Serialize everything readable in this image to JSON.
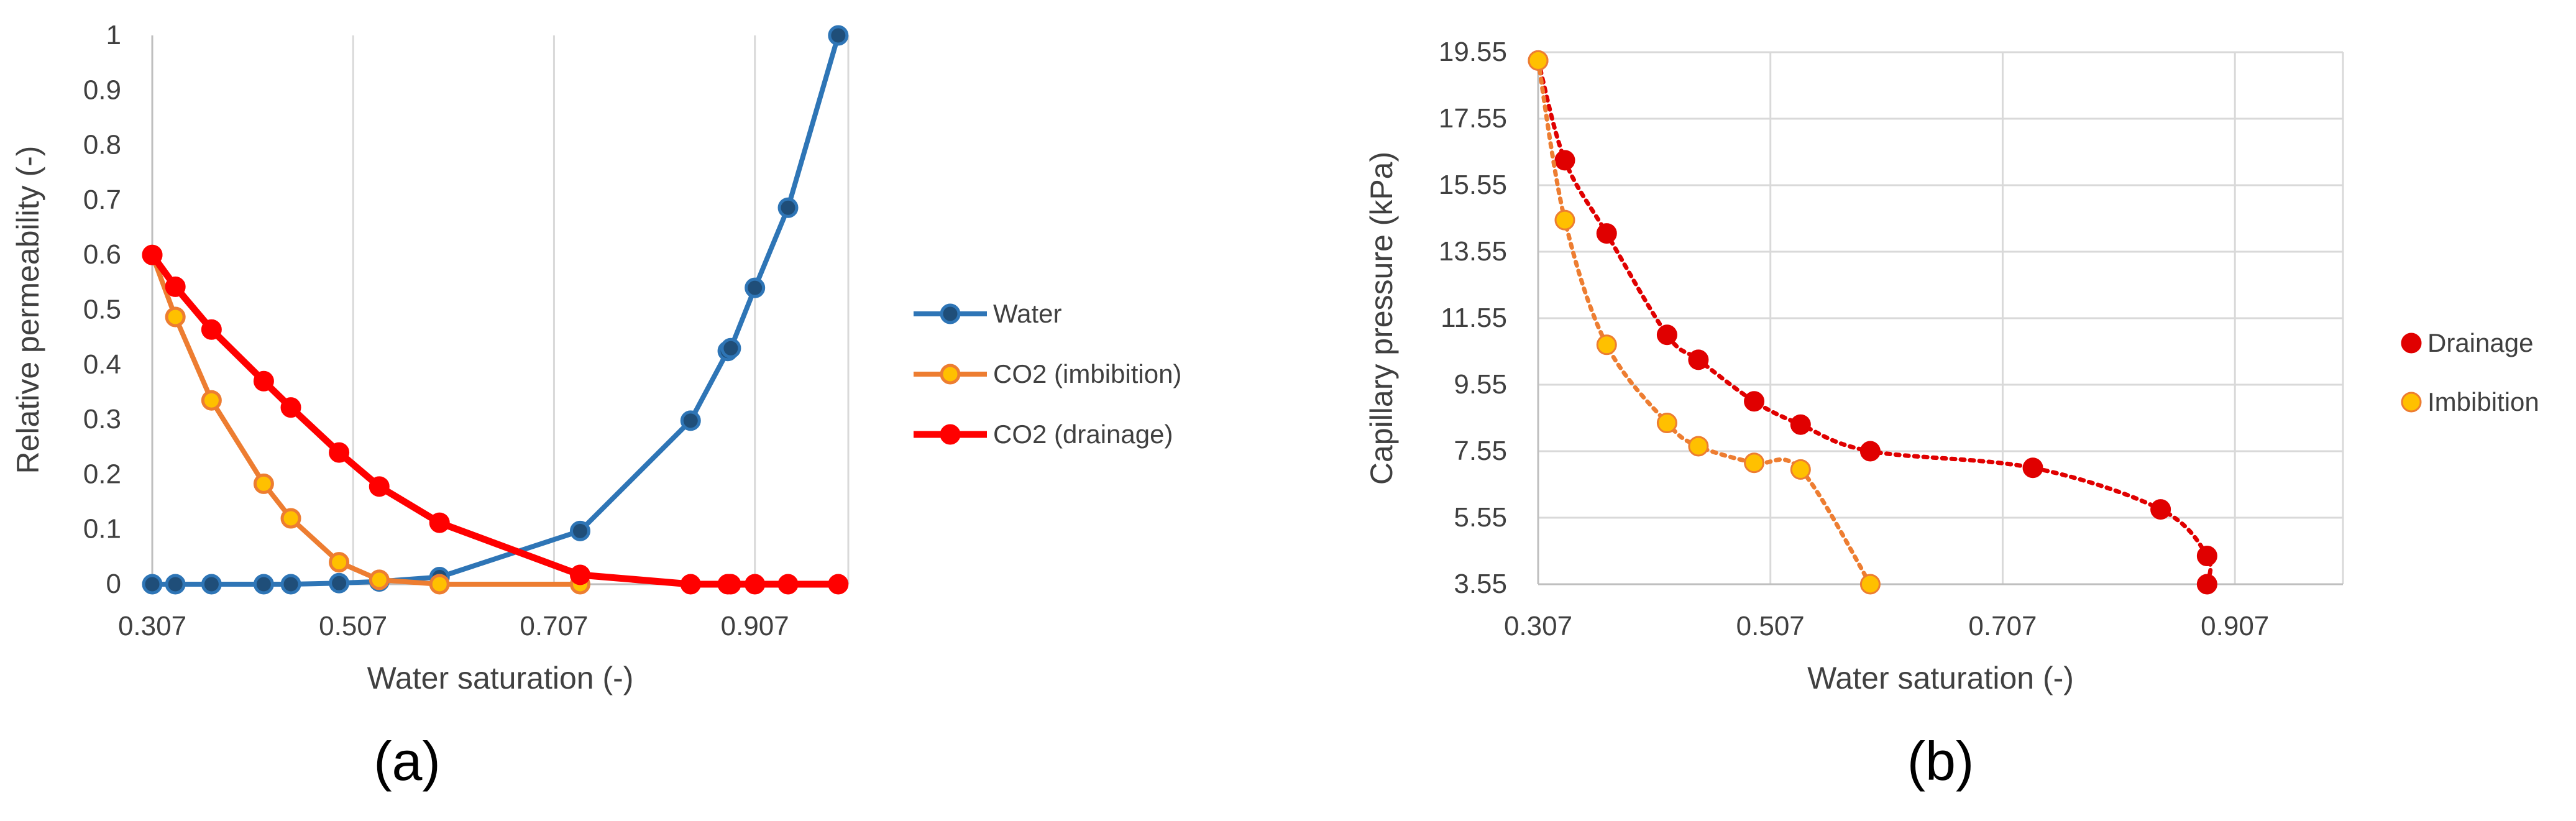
{
  "chart_data": [
    {
      "panel_label": "(a)",
      "type": "line",
      "title": "",
      "xlabel": "Water saturation (-)",
      "ylabel": "Relative permeability (-)",
      "xlim": [
        0.307,
        1.0
      ],
      "ylim": [
        0,
        1
      ],
      "xticks": [
        0.307,
        0.507,
        0.707,
        0.907
      ],
      "xtick_labels": [
        "0.307",
        "0.507",
        "0.707",
        "0.907"
      ],
      "yticks": [
        0,
        0.1,
        0.2,
        0.3,
        0.4,
        0.5,
        0.6,
        0.7,
        0.8,
        0.9,
        1
      ],
      "ytick_labels": [
        "0",
        "0.1",
        "0.2",
        "0.3",
        "0.4",
        "0.5",
        "0.6",
        "0.7",
        "0.8",
        "0.9",
        "1"
      ],
      "grid": "vertical",
      "legend": "right",
      "series": [
        {
          "name": "Water",
          "line_color": "#2E75B6",
          "marker_color": "#1F4E79",
          "x": [
            0.307,
            0.33,
            0.366,
            0.418,
            0.445,
            0.493,
            0.533,
            0.593,
            0.733,
            0.843,
            0.88,
            0.883,
            0.907,
            0.94,
            0.99
          ],
          "y": [
            0,
            0,
            0,
            0,
            0,
            0.002,
            0.005,
            0.013,
            0.097,
            0.298,
            0.425,
            0.43,
            0.54,
            0.686,
            1.0
          ]
        },
        {
          "name": "CO2 (imbibition)",
          "line_color": "#ED7D31",
          "marker_color": "#FFC000",
          "x": [
            0.307,
            0.33,
            0.366,
            0.418,
            0.445,
            0.493,
            0.533,
            0.593,
            0.733
          ],
          "y": [
            0.6,
            0.487,
            0.335,
            0.183,
            0.12,
            0.04,
            0.008,
            0,
            0
          ]
        },
        {
          "name": "CO2 (drainage)",
          "line_color": "#FF0000",
          "marker_color": "#FF0000",
          "x": [
            0.307,
            0.33,
            0.366,
            0.418,
            0.445,
            0.493,
            0.533,
            0.593,
            0.733,
            0.843,
            0.88,
            0.883,
            0.907,
            0.94,
            0.99
          ],
          "y": [
            0.6,
            0.542,
            0.464,
            0.37,
            0.322,
            0.24,
            0.178,
            0.112,
            0.017,
            0,
            0,
            0,
            0,
            0,
            0
          ]
        }
      ]
    },
    {
      "panel_label": "(b)",
      "type": "scatter",
      "title": "",
      "xlabel": "Water saturation (-)",
      "ylabel": "Capillary pressure (kPa)",
      "xlim": [
        0.307,
        1.0
      ],
      "ylim": [
        3.55,
        19.55
      ],
      "xticks": [
        0.307,
        0.507,
        0.707,
        0.907
      ],
      "xtick_labels": [
        "0.307",
        "0.507",
        "0.707",
        "0.907"
      ],
      "yticks": [
        3.55,
        5.55,
        7.55,
        9.55,
        11.55,
        13.55,
        15.55,
        17.55,
        19.55
      ],
      "ytick_labels": [
        "3.55",
        "5.55",
        "7.55",
        "9.55",
        "11.55",
        "13.55",
        "15.55",
        "17.55",
        "19.55"
      ],
      "grid": "both",
      "legend": "right",
      "series": [
        {
          "name": "Drainage",
          "marker_color": "#E00000",
          "trendline_color": "#E00000",
          "x": [
            0.307,
            0.33,
            0.366,
            0.418,
            0.445,
            0.493,
            0.533,
            0.593,
            0.733,
            0.843,
            0.883,
            0.883
          ],
          "y": [
            19.3,
            16.3,
            14.1,
            11.05,
            10.3,
            9.05,
            8.35,
            7.55,
            7.05,
            5.8,
            4.4,
            3.55
          ]
        },
        {
          "name": "Imbibition",
          "marker_color": "#FFC000",
          "trendline_color": "#ED7D31",
          "x": [
            0.307,
            0.33,
            0.366,
            0.418,
            0.445,
            0.493,
            0.533,
            0.593
          ],
          "y": [
            19.3,
            14.5,
            10.75,
            8.4,
            7.7,
            7.2,
            7.0,
            3.55
          ]
        }
      ]
    }
  ]
}
